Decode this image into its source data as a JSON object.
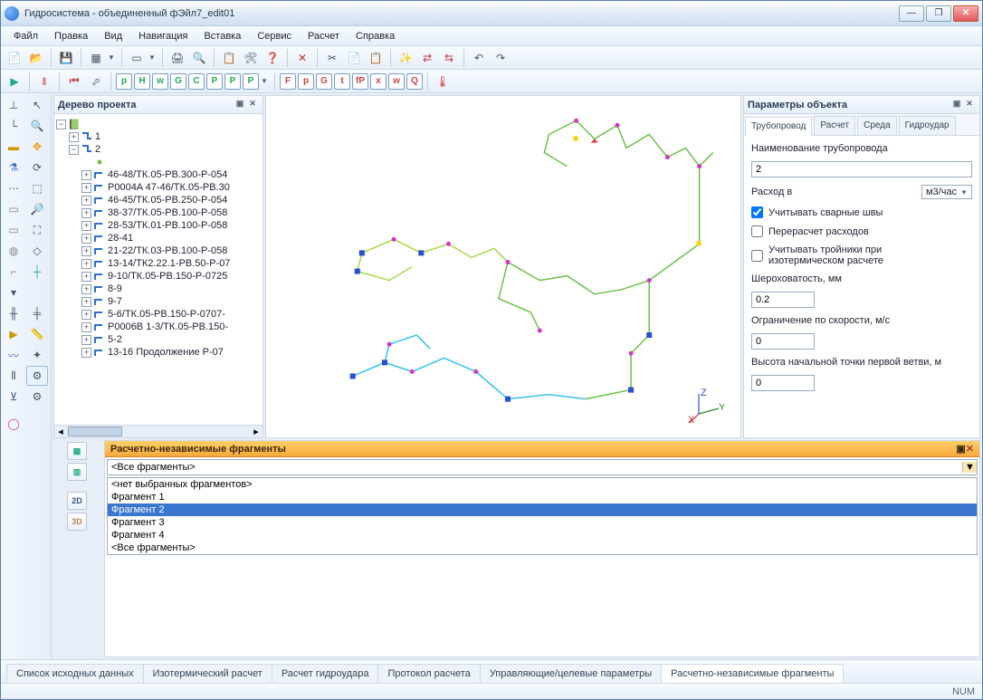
{
  "window": {
    "title": "Гидросистема - объединенный фЭйл7_edit01",
    "min": "—",
    "max": "❐",
    "close": "✕"
  },
  "menu": [
    "Файл",
    "Правка",
    "Вид",
    "Навигация",
    "Вставка",
    "Сервис",
    "Расчет",
    "Справка"
  ],
  "toolbar2_letters": [
    "p",
    "H",
    "w",
    "G",
    "C",
    "P",
    "P",
    "P"
  ],
  "toolbar2_letters_b": [
    "F",
    "p",
    "G",
    "t",
    "fP",
    "x",
    "w",
    "Q"
  ],
  "tree": {
    "title": "Дерево проекта",
    "root1": "1",
    "root2": "2",
    "items": [
      "46-48/ТК.05-PB.300-P-054",
      "P0004A 47-46/ТК.05-PB.30",
      "46-45/ТК.05-PB.250-P-054",
      "38-37/ТК.05-PB.100-P-058",
      "28-53/ТК.01-PB.100-P-058",
      "28-41",
      "21-22/ТК.03-PB.100-P-058",
      "13-14/ТК2.22.1-PB.50-P-07",
      "9-10/ТК.05-PB.150-P-0725",
      "8-9",
      "9-7",
      "5-6/ТК.05-PB.150-P-0707-",
      "P0006B 1-3/ТК.05-PB.150-",
      "5-2",
      "13-16 Продолжение P-07"
    ]
  },
  "props": {
    "title": "Параметры объекта",
    "tabs": [
      "Трубопровод",
      "Расчет",
      "Среда",
      "Гидроудар"
    ],
    "name_label": "Наименование трубопровода",
    "name_value": "2",
    "flow_label": "Расход в",
    "flow_unit": "м3/час",
    "chk_weld": "Учитывать сварные швы",
    "chk_weld_val": true,
    "chk_recalc": "Перерасчет расходов",
    "chk_recalc_val": false,
    "chk_tee": "Учитывать тройники при изотермическом расчете",
    "chk_tee_val": false,
    "rough_label": "Шероховатость, мм",
    "rough_value": "0.2",
    "vel_label": "Ограничение по скорости, м/с",
    "vel_value": "0",
    "h_label": "Высота начальной точки первой ветви, м",
    "h_value": "0"
  },
  "frag": {
    "title": "Расчетно-независимые фрагменты",
    "select": "<Все фрагменты>",
    "items": [
      "<нет выбранных фрагментов>",
      "Фрагмент 1",
      "Фрагмент 2",
      "Фрагмент 3",
      "Фрагмент 4",
      "<Все фрагменты>"
    ],
    "selected_index": 2,
    "btn2d": "2D",
    "btn3d": "3D"
  },
  "bottom_tabs": [
    "Список исходных данных",
    "Изотермический расчет",
    "Расчет гидроудара",
    "Протокол расчета",
    "Управляющие/целевые параметры",
    "Расчетно-независимые фрагменты"
  ],
  "bottom_active": 5,
  "status": {
    "num": "NUM"
  },
  "colors": {
    "pipe_green": "#6cc24a",
    "pipe_cyan": "#35c3e8",
    "pipe_lime": "#a8d84a",
    "marker_magenta": "#d038c0",
    "marker_blue": "#2a4fd0",
    "marker_red": "#e03030",
    "marker_yellow": "#f5d000"
  },
  "axis": {
    "x": "X",
    "y": "Y",
    "z": "Z"
  }
}
